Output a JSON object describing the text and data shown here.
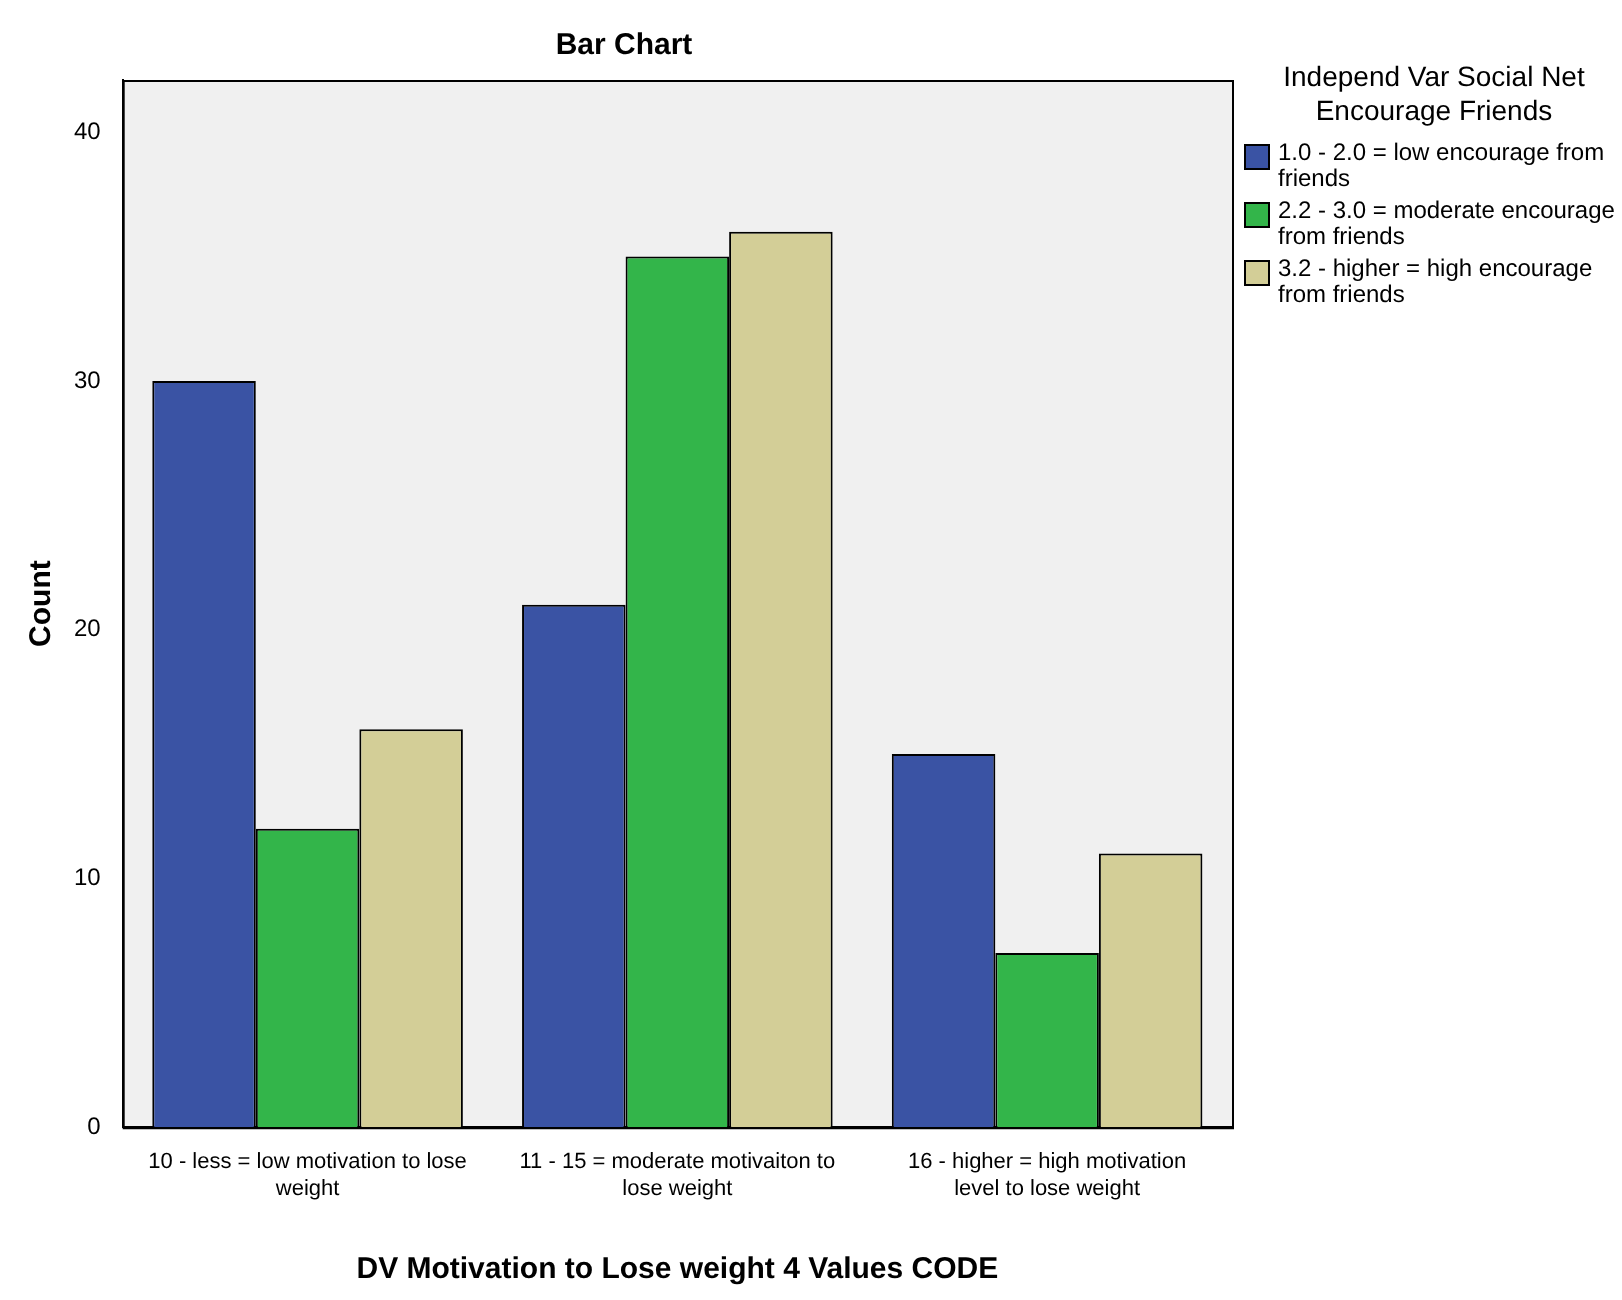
{
  "chart_data": {
    "type": "bar",
    "title": "Bar Chart",
    "xlabel": "DV Motivation to Lose weight 4 Values CODE",
    "ylabel": "Count",
    "legend_title": "Independ Var Social Net Encourage Friends",
    "legend": "right",
    "grid": false,
    "categories": [
      "10 - less = low motivation to lose weight",
      "11 - 15 = moderate motivaiton to lose weight",
      "16 - higher = high motivation level to lose weight"
    ],
    "series": [
      {
        "name": "1.0 - 2.0 = low encourage from friends",
        "color": "#3a53a4",
        "values": [
          30,
          21,
          15
        ]
      },
      {
        "name": "2.2 - 3.0 = moderate encourage from friends",
        "color": "#33b54a",
        "values": [
          12,
          35,
          7
        ]
      },
      {
        "name": "3.2 - higher = high encourage from friends",
        "color": "#d3ce97",
        "values": [
          16,
          36,
          11
        ]
      }
    ],
    "ylim": [
      0,
      42.1
    ],
    "yticks": [
      0,
      10,
      20,
      30,
      40
    ]
  }
}
